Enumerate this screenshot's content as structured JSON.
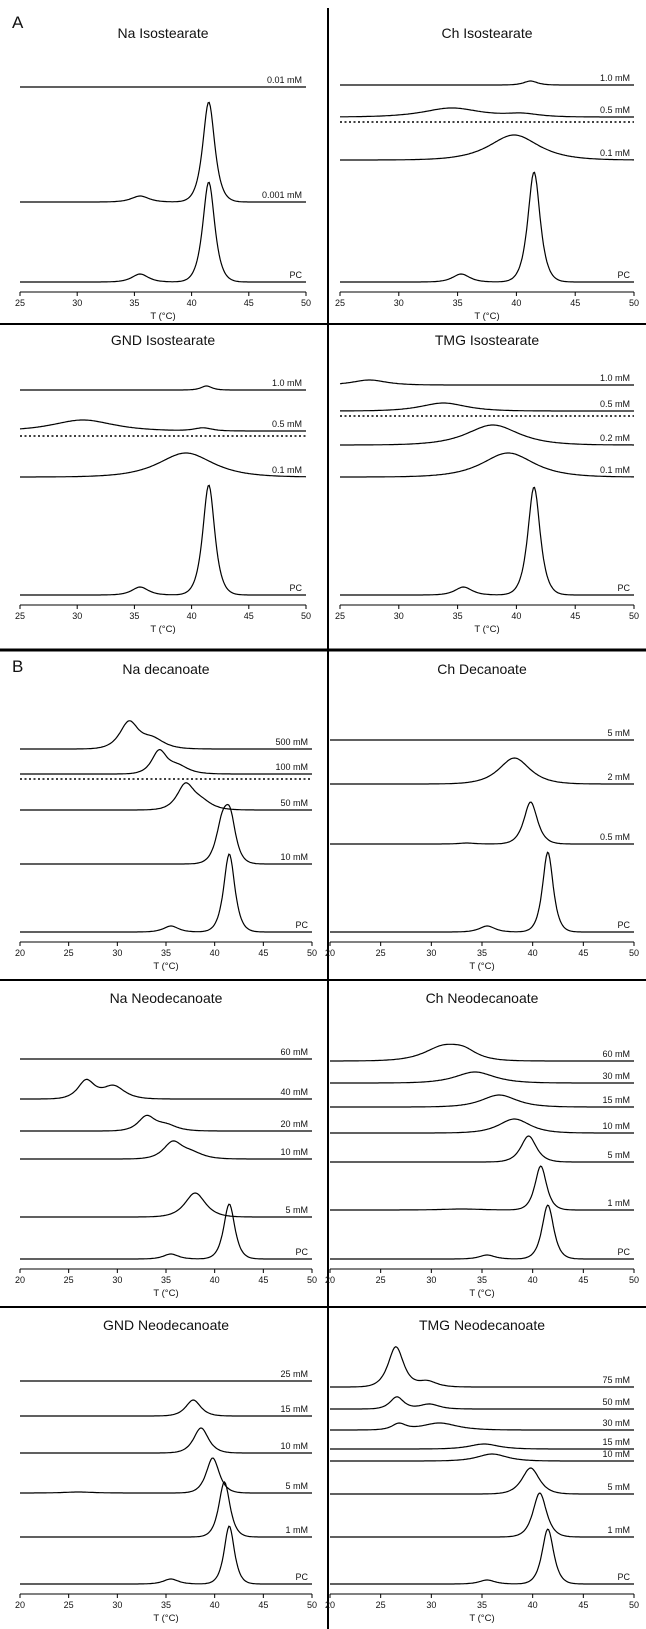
{
  "sections": [
    "A",
    "B"
  ],
  "x_axis_label": "T (°C)",
  "chart_data": [
    {
      "type": "line",
      "title": "Na Isostearate",
      "xlim": [
        25,
        50
      ],
      "xticks": [
        25,
        30,
        35,
        40,
        45,
        50
      ],
      "xlabel": "T (°C)",
      "series": [
        {
          "name": "PC",
          "baseline": 0,
          "peaks": [
            [
              35.5,
              8,
              0.75
            ],
            [
              41.5,
              100,
              0.55
            ]
          ]
        },
        {
          "name": "0.001 mM",
          "baseline": 80,
          "peaks": [
            [
              35.5,
              6,
              0.8
            ],
            [
              41.5,
              100,
              0.55
            ]
          ]
        },
        {
          "name": "0.01 mM",
          "baseline": 195,
          "peaks": []
        }
      ]
    },
    {
      "type": "line",
      "title": "Ch Isostearate",
      "xlim": [
        25,
        50
      ],
      "xticks": [
        25,
        30,
        35,
        40,
        45,
        50
      ],
      "xlabel": "T (°C)",
      "series": [
        {
          "name": "PC",
          "baseline": 0,
          "peaks": [
            [
              35.3,
              8,
              0.75
            ],
            [
              41.5,
              110,
              0.55
            ]
          ]
        },
        {
          "name": "0.1 mM",
          "baseline": 122,
          "peaks": [
            [
              39.8,
              25,
              2.2
            ]
          ]
        },
        {
          "name": "0.5 mM",
          "baseline": 165,
          "peaks": [
            [
              34.5,
              9,
              2.5
            ],
            [
              40.5,
              3,
              1.5
            ]
          ],
          "dotted_reference": true
        },
        {
          "name": "1.0 mM",
          "baseline": 197,
          "peaks": [
            [
              41.2,
              4,
              0.6
            ]
          ]
        }
      ]
    },
    {
      "type": "line",
      "title": "GND Isostearate",
      "xlim": [
        25,
        50
      ],
      "xticks": [
        25,
        30,
        35,
        40,
        45,
        50
      ],
      "xlabel": "T (°C)",
      "series": [
        {
          "name": "PC",
          "baseline": 0,
          "peaks": [
            [
              35.5,
              8,
              0.75
            ],
            [
              41.5,
              110,
              0.55
            ]
          ]
        },
        {
          "name": "0.1 mM",
          "baseline": 118,
          "peaks": [
            [
              39.5,
              24,
              2.5
            ]
          ]
        },
        {
          "name": "0.5 mM",
          "baseline": 164,
          "peaks": [
            [
              30.5,
              11,
              2.8
            ],
            [
              41,
              3,
              0.8
            ]
          ],
          "dotted_reference": true
        },
        {
          "name": "1.0 mM",
          "baseline": 205,
          "peaks": [
            [
              41.3,
              4,
              0.5
            ]
          ]
        }
      ]
    },
    {
      "type": "line",
      "title": "TMG Isostearate",
      "xlim": [
        25,
        50
      ],
      "xticks": [
        25,
        30,
        35,
        40,
        45,
        50
      ],
      "xlabel": "T (°C)",
      "series": [
        {
          "name": "PC",
          "baseline": 0,
          "peaks": [
            [
              35.5,
              8,
              0.75
            ],
            [
              41.5,
              108,
              0.55
            ]
          ]
        },
        {
          "name": "0.1 mM",
          "baseline": 118,
          "peaks": [
            [
              39.3,
              24,
              2.3
            ]
          ]
        },
        {
          "name": "0.2 mM",
          "baseline": 150,
          "peaks": [
            [
              38,
              20,
              2.3
            ]
          ]
        },
        {
          "name": "0.5 mM",
          "baseline": 184,
          "peaks": [
            [
              33.8,
              8,
              2.0
            ]
          ],
          "dotted_reference": true
        },
        {
          "name": "1.0 mM",
          "baseline": 210,
          "peaks": [
            [
              27.5,
              5,
              1.5
            ]
          ]
        }
      ]
    },
    {
      "type": "line",
      "title": "Na decanoate",
      "xlim": [
        20,
        50
      ],
      "xticks": [
        20,
        25,
        30,
        35,
        40,
        45,
        50
      ],
      "xlabel": "T (°C)",
      "series": [
        {
          "name": "PC",
          "baseline": 0,
          "peaks": [
            [
              35.5,
              6,
              0.8
            ],
            [
              41.5,
              78,
              0.6
            ]
          ]
        },
        {
          "name": "10 mM",
          "baseline": 68,
          "peaks": [
            [
              40.8,
              38,
              0.7
            ],
            [
              41.6,
              38,
              0.6
            ]
          ]
        },
        {
          "name": "50 mM",
          "baseline": 122,
          "peaks": [
            [
              37,
              24,
              0.9
            ],
            [
              38.6,
              8,
              1.2
            ]
          ]
        },
        {
          "name": "100 mM",
          "baseline": 158,
          "peaks": [
            [
              34.3,
              22,
              0.8
            ],
            [
              36.2,
              8,
              1.2
            ]
          ],
          "dotted_reference": true
        },
        {
          "name": "500 mM",
          "baseline": 183,
          "peaks": [
            [
              31.2,
              26,
              1.0
            ],
            [
              33.6,
              10,
              1.3
            ]
          ]
        }
      ]
    },
    {
      "type": "line",
      "title": "Ch Decanoate",
      "xlim": [
        20,
        50
      ],
      "xticks": [
        20,
        25,
        30,
        35,
        40,
        45,
        50
      ],
      "xlabel": "T (°C)",
      "series": [
        {
          "name": "PC",
          "baseline": 0,
          "peaks": [
            [
              35.5,
              6,
              0.8
            ],
            [
              41.5,
              80,
              0.55
            ]
          ]
        },
        {
          "name": "0.5 mM",
          "baseline": 88,
          "peaks": [
            [
              33.5,
              1,
              0.8
            ],
            [
              39.8,
              42,
              0.7
            ]
          ]
        },
        {
          "name": "2 mM",
          "baseline": 148,
          "peaks": [
            [
              38.2,
              26,
              1.6
            ]
          ]
        },
        {
          "name": "5 mM",
          "baseline": 192,
          "peaks": []
        }
      ]
    },
    {
      "type": "line",
      "title": "Na Neodecanoate",
      "xlim": [
        20,
        50
      ],
      "xticks": [
        20,
        25,
        30,
        35,
        40,
        45,
        50
      ],
      "xlabel": "T (°C)",
      "series": [
        {
          "name": "PC",
          "baseline": 0,
          "peaks": [
            [
              35.5,
              5,
              0.8
            ],
            [
              41.5,
              55,
              0.6
            ]
          ]
        },
        {
          "name": "5 mM",
          "baseline": 42,
          "peaks": [
            [
              38,
              24,
              1.1
            ]
          ]
        },
        {
          "name": "10 mM",
          "baseline": 100,
          "peaks": [
            [
              35.7,
              16,
              1.0
            ],
            [
              37.6,
              6,
              1.3
            ]
          ]
        },
        {
          "name": "20 mM",
          "baseline": 128,
          "peaks": [
            [
              33,
              14,
              0.9
            ],
            [
              35,
              6,
              1.2
            ]
          ]
        },
        {
          "name": "40 mM",
          "baseline": 160,
          "peaks": [
            [
              26.8,
              18,
              0.9
            ],
            [
              29.6,
              13,
              1.2
            ]
          ]
        },
        {
          "name": "60 mM",
          "baseline": 200,
          "peaks": []
        }
      ]
    },
    {
      "type": "line",
      "title": "Ch Neodecanoate",
      "xlim": [
        20,
        50
      ],
      "xticks": [
        20,
        25,
        30,
        35,
        40,
        45,
        50
      ],
      "xlabel": "T (°C)",
      "series": [
        {
          "name": "PC",
          "baseline": 0,
          "peaks": [
            [
              35.5,
              4,
              0.8
            ],
            [
              41.5,
              54,
              0.6
            ]
          ]
        },
        {
          "name": "1 mM",
          "baseline": 49,
          "peaks": [
            [
              33,
              1,
              2.0
            ],
            [
              40.8,
              44,
              0.6
            ]
          ]
        },
        {
          "name": "5 mM",
          "baseline": 97,
          "peaks": [
            [
              39.6,
              26,
              0.8
            ]
          ]
        },
        {
          "name": "10 mM",
          "baseline": 126,
          "peaks": [
            [
              38.2,
              14,
              1.6
            ]
          ]
        },
        {
          "name": "15 mM",
          "baseline": 152,
          "peaks": [
            [
              36.7,
              12,
              1.8
            ]
          ]
        },
        {
          "name": "30 mM",
          "baseline": 176,
          "peaks": [
            [
              34.3,
              11,
              2.0
            ]
          ]
        },
        {
          "name": "60 mM",
          "baseline": 198,
          "peaks": [
            [
              31.2,
              14,
              2.0
            ],
            [
              33.2,
              7,
              1.3
            ]
          ]
        }
      ]
    },
    {
      "type": "line",
      "title": "GND Neodecanoate",
      "xlim": [
        20,
        50
      ],
      "xticks": [
        20,
        25,
        30,
        35,
        40,
        45,
        50
      ],
      "xlabel": "T (°C)",
      "series": [
        {
          "name": "PC",
          "baseline": 0,
          "peaks": [
            [
              35.5,
              5,
              0.8
            ],
            [
              41.5,
              58,
              0.55
            ]
          ]
        },
        {
          "name": "1 mM",
          "baseline": 47,
          "peaks": [
            [
              41,
              55,
              0.6
            ]
          ]
        },
        {
          "name": "5 mM",
          "baseline": 91,
          "peaks": [
            [
              26,
              1,
              1.5
            ],
            [
              39.8,
              35,
              0.7
            ]
          ]
        },
        {
          "name": "10 mM",
          "baseline": 131,
          "peaks": [
            [
              38.6,
              25,
              0.8
            ]
          ]
        },
        {
          "name": "15 mM",
          "baseline": 168,
          "peaks": [
            [
              37.8,
              16,
              0.8
            ]
          ]
        },
        {
          "name": "25 mM",
          "baseline": 203,
          "peaks": []
        }
      ]
    },
    {
      "type": "line",
      "title": "TMG Neodecanoate",
      "xlim": [
        20,
        50
      ],
      "xticks": [
        20,
        25,
        30,
        35,
        40,
        45,
        50
      ],
      "xlabel": "T (°C)",
      "series": [
        {
          "name": "PC",
          "baseline": 0,
          "peaks": [
            [
              35.5,
              4,
              0.8
            ],
            [
              41.5,
              55,
              0.6
            ]
          ]
        },
        {
          "name": "1 mM",
          "baseline": 47,
          "peaks": [
            [
              40.7,
              44,
              0.7
            ]
          ]
        },
        {
          "name": "5 mM",
          "baseline": 90,
          "peaks": [
            [
              39.8,
              26,
              0.9
            ]
          ]
        },
        {
          "name": "10 mM",
          "baseline": 123,
          "peaks": [
            [
              36,
              7,
              1.5
            ]
          ]
        },
        {
          "name": "15 mM",
          "baseline": 135,
          "peaks": [
            [
              35.2,
              5,
              1.5
            ]
          ]
        },
        {
          "name": "30 mM",
          "baseline": 154,
          "peaks": [
            [
              26.8,
              6,
              0.7
            ],
            [
              30.8,
              7,
              1.8
            ]
          ]
        },
        {
          "name": "50 mM",
          "baseline": 175,
          "peaks": [
            [
              26.6,
              12,
              0.7
            ],
            [
              29.8,
              5,
              1.0
            ]
          ]
        },
        {
          "name": "75 mM",
          "baseline": 197,
          "peaks": [
            [
              26.5,
              40,
              0.8
            ],
            [
              29.6,
              6,
              1.0
            ]
          ]
        }
      ]
    }
  ]
}
